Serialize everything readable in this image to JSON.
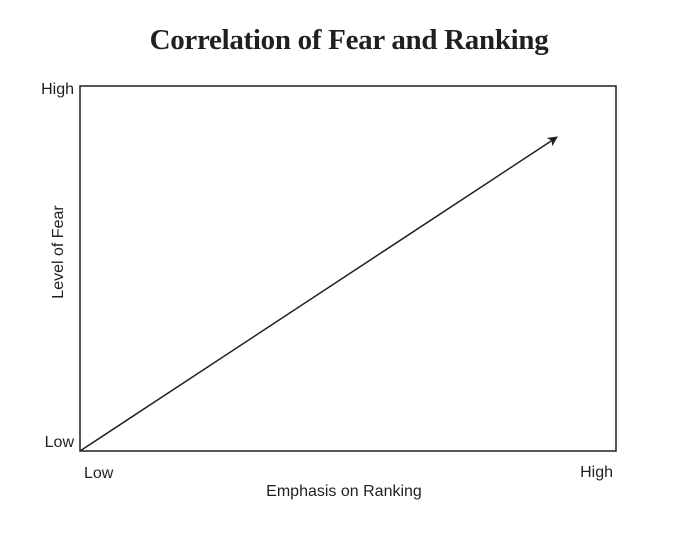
{
  "chart_data": {
    "type": "line",
    "title": "Correlation of Fear and Ranking",
    "xlabel": "Emphasis on Ranking",
    "ylabel": "Level of Fear",
    "x_ticks": [
      "Low",
      "High"
    ],
    "y_ticks": [
      "Low",
      "High"
    ],
    "xlim": [
      0,
      1
    ],
    "ylim": [
      0,
      1
    ],
    "grid": false,
    "legend": "none",
    "series": [
      {
        "style": "arrow",
        "color": "#231f20",
        "points": [
          {
            "x": 0.0,
            "y": 0.0
          },
          {
            "x": 0.89,
            "y": 0.86
          }
        ]
      }
    ]
  }
}
